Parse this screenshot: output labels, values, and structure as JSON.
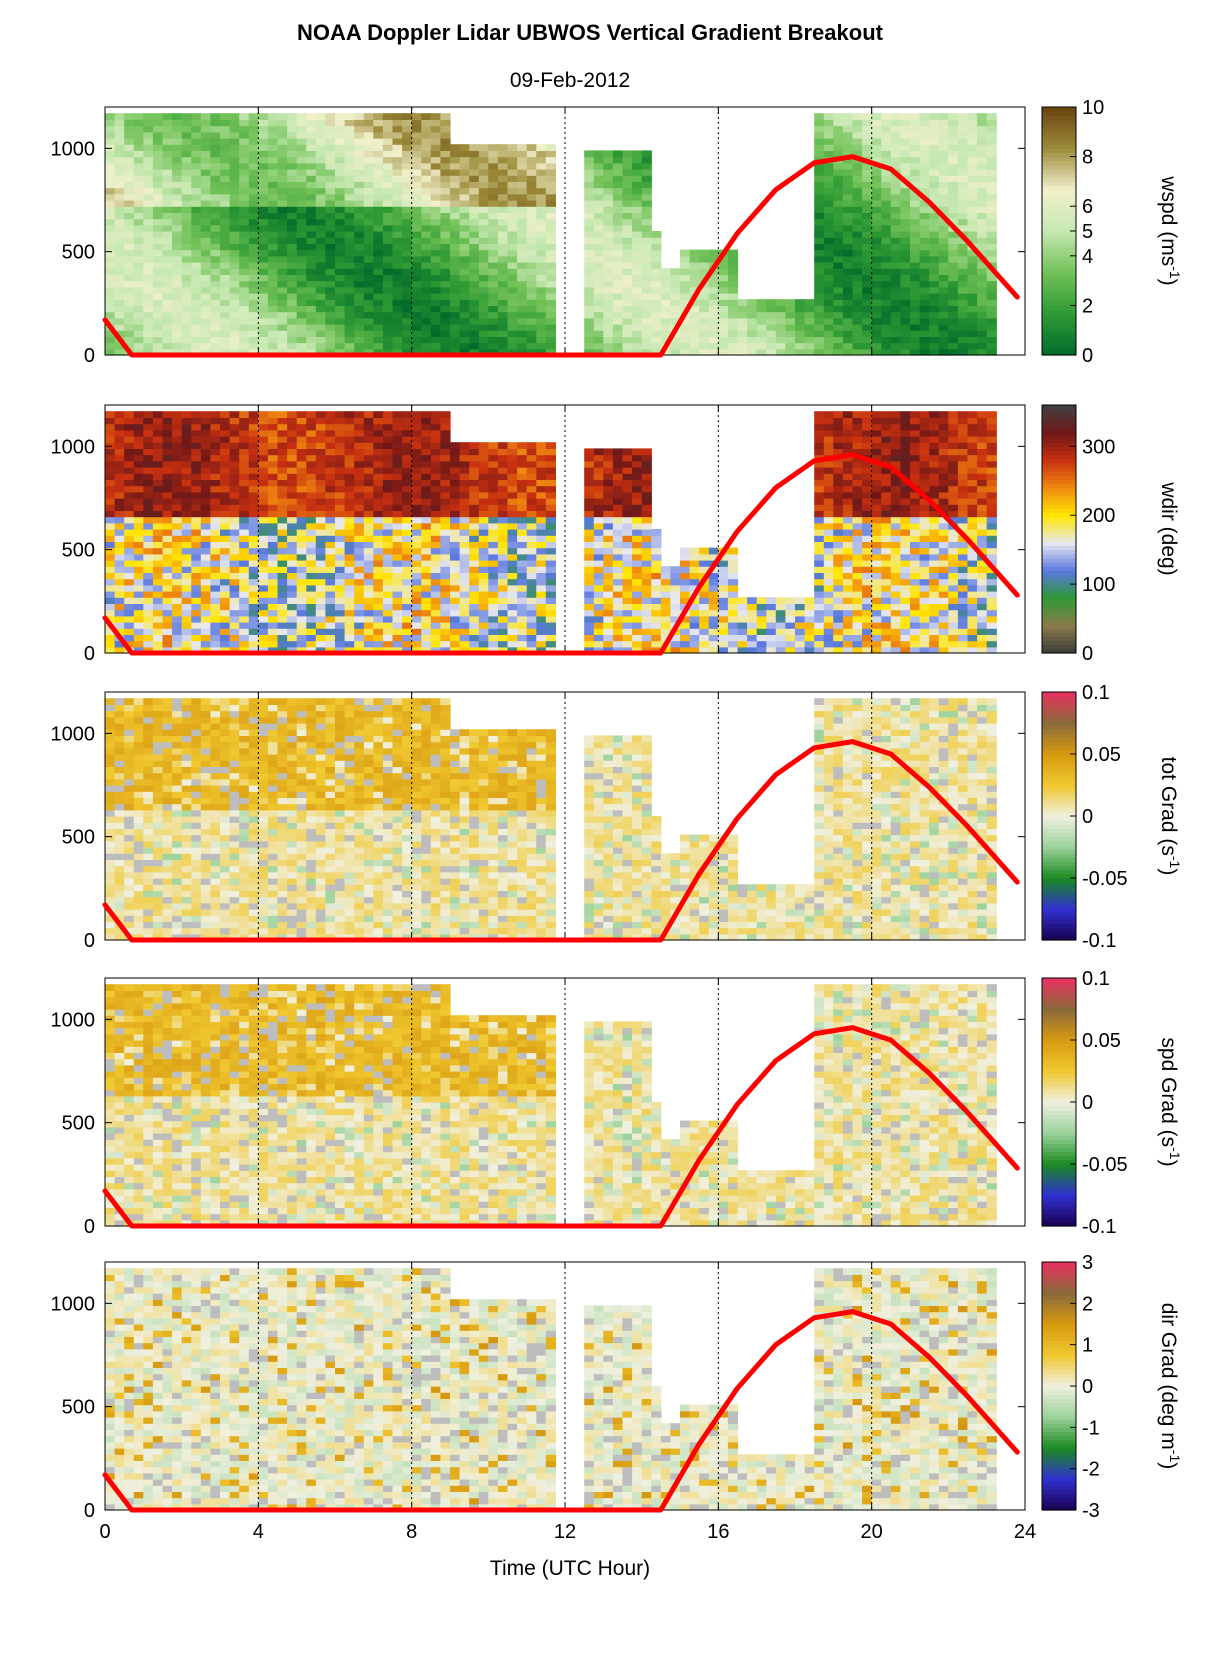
{
  "title": "NOAA Doppler Lidar  UBWOS  Vertical Gradient Breakout",
  "date": "09-Feb-2012",
  "x_axis_label": "Time (UTC Hour)",
  "chart_data": {
    "type": "heatmap",
    "x_range": [
      0,
      24
    ],
    "x_ticks": [
      "0",
      "4",
      "8",
      "12",
      "16",
      "20",
      "24"
    ],
    "y_range": [
      0,
      1200
    ],
    "y_ticks": [
      "0",
      "500",
      "1000"
    ],
    "vertical_reference_lines_hours": [
      4,
      8,
      12,
      16,
      20
    ],
    "overlay_line": {
      "color": "#ff0000",
      "x": [
        0,
        0.7,
        14.5,
        15.5,
        16.5,
        17.5,
        18.5,
        19.5,
        20.5,
        21.5,
        22.5,
        23.8
      ],
      "y": [
        170,
        0,
        0,
        320,
        590,
        800,
        930,
        960,
        900,
        740,
        550,
        280
      ]
    },
    "panels": [
      {
        "name": "wspd",
        "cb_label": "wspd (ms",
        "cb_sup": "-1",
        "cb_end": ")",
        "range": [
          0,
          10
        ],
        "ticks": [
          "0",
          "2",
          "4",
          "5",
          "6",
          "8",
          "10"
        ],
        "tick_values": [
          0,
          2,
          4,
          5,
          6,
          8,
          10
        ],
        "colors": [
          "#006b2a",
          "#2e9a34",
          "#71c157",
          "#c6e8b2",
          "#f2f0cc",
          "#9c8c3a",
          "#6b4310"
        ]
      },
      {
        "name": "wdir",
        "cb_label": "wdir (deg)",
        "cb_sup": "",
        "cb_end": "",
        "range": [
          0,
          360
        ],
        "ticks": [
          "0",
          "100",
          "200",
          "300"
        ],
        "tick_values": [
          0,
          100,
          200,
          300
        ],
        "colors": [
          "#3a3a3a",
          "#8a7a4a",
          "#2e9a34",
          "#5a78e0",
          "#e8e8f0",
          "#ffe600",
          "#f08a10",
          "#c83010",
          "#701818",
          "#404040"
        ]
      },
      {
        "name": "totgrad",
        "cb_label": "tot Grad (s",
        "cb_sup": "-1",
        "cb_end": ")",
        "range": [
          -0.1,
          0.1
        ],
        "ticks": [
          "-0.1",
          "-0.05",
          "0",
          "0.05",
          "0.1"
        ],
        "tick_values": [
          -0.1,
          -0.05,
          0,
          0.05,
          0.1
        ],
        "colors": [
          "#1a0050",
          "#3030d0",
          "#1a8a20",
          "#9ad29a",
          "#f0f0e0",
          "#f0c830",
          "#d89a10",
          "#8a6a3a",
          "#e83060"
        ]
      },
      {
        "name": "spdgrad",
        "cb_label": "spd Grad (s",
        "cb_sup": "-1",
        "cb_end": ")",
        "range": [
          -0.1,
          0.1
        ],
        "ticks": [
          "-0.1",
          "-0.05",
          "0",
          "0.05",
          "0.1"
        ],
        "tick_values": [
          -0.1,
          -0.05,
          0,
          0.05,
          0.1
        ],
        "colors": [
          "#1a0050",
          "#3030d0",
          "#1a8a20",
          "#9ad29a",
          "#f0f0e0",
          "#f0c830",
          "#d89a10",
          "#8a6a3a",
          "#e83060"
        ]
      },
      {
        "name": "dirgrad",
        "cb_label": "dir Grad (deg m",
        "cb_sup": "-1",
        "cb_end": ")",
        "range": [
          -3,
          3
        ],
        "ticks": [
          "-3",
          "-2",
          "-1",
          "0",
          "1",
          "2",
          "3"
        ],
        "tick_values": [
          -3,
          -2,
          -1,
          0,
          1,
          2,
          3
        ],
        "colors": [
          "#1a0050",
          "#3030d0",
          "#1a8a20",
          "#9ad29a",
          "#f0f0e0",
          "#f0c830",
          "#d89a10",
          "#8a6a3a",
          "#e83060"
        ]
      }
    ]
  }
}
